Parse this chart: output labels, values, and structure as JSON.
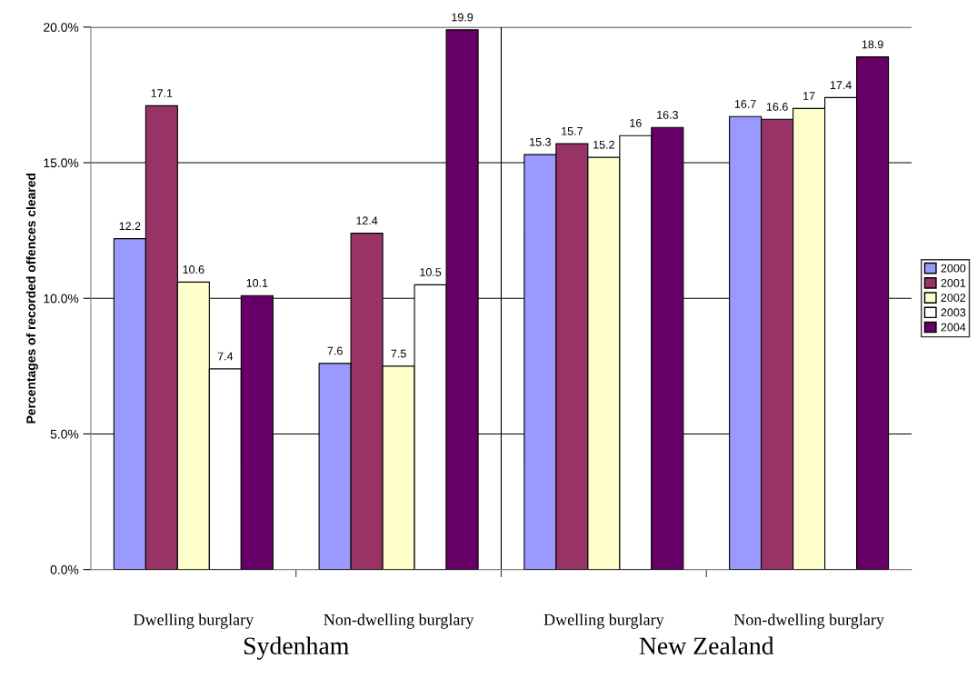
{
  "chart_data": {
    "type": "bar",
    "ylabel": "Percentages of recorded offences cleared",
    "categories": [
      "Dwelling burglary",
      "Non-dwelling burglary",
      "Dwelling burglary",
      "Non-dwelling burglary"
    ],
    "series": [
      {
        "name": "2000",
        "color": "#9999ff",
        "values": [
          12.2,
          7.6,
          15.3,
          16.7
        ]
      },
      {
        "name": "2001",
        "color": "#993366",
        "values": [
          17.1,
          12.4,
          15.7,
          16.6
        ]
      },
      {
        "name": "2002",
        "color": "#ffffcc",
        "values": [
          10.6,
          7.5,
          15.2,
          17
        ]
      },
      {
        "name": "2003",
        "color": "#ffffff",
        "values": [
          7.4,
          10.5,
          16,
          17.4
        ]
      },
      {
        "name": "2004",
        "color": "#660066",
        "values": [
          10.1,
          19.9,
          16.3,
          18.9
        ]
      }
    ],
    "ylim": [
      0,
      20
    ],
    "yticks": [
      {
        "value": 0,
        "label": "0.0%"
      },
      {
        "value": 5,
        "label": "5.0%"
      },
      {
        "value": 10,
        "label": "10.0%"
      },
      {
        "value": 15,
        "label": "15.0%"
      },
      {
        "value": 20,
        "label": "20.0%"
      }
    ],
    "grid": "y",
    "legend": "right",
    "data_labels": true,
    "annotations": [
      "Sydenham",
      "New Zealand"
    ]
  }
}
